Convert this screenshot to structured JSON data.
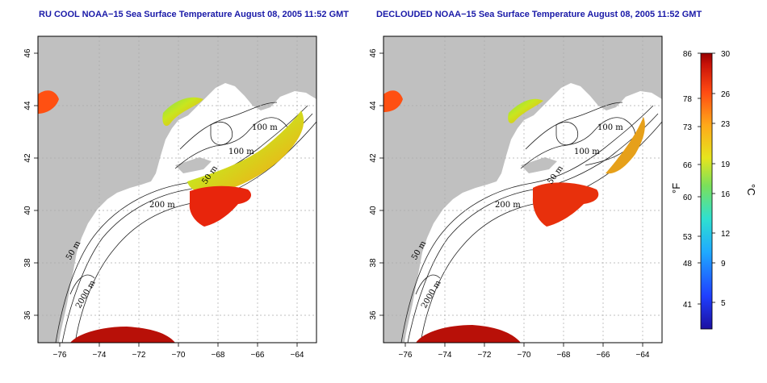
{
  "panels": [
    {
      "title": "RU COOL NOAA−15 Sea Surface Temperature August 08, 2005 11:52 GMT",
      "contour_labels": [
        "100 m",
        "100 m",
        "50 m",
        "200 m",
        "50 m",
        "2000 m"
      ]
    },
    {
      "title": "DECLOUDED NOAA−15 Sea Surface Temperature August 08, 2005 11:52 GMT",
      "contour_labels": [
        "100 m",
        "100 m",
        "50 m",
        "200 m",
        "50 m",
        "2000 m"
      ]
    }
  ],
  "axes": {
    "x_ticks": [
      "−76",
      "−74",
      "−72",
      "−70",
      "−68",
      "−66",
      "−64"
    ],
    "y_ticks": [
      "36",
      "38",
      "40",
      "42",
      "44",
      "46"
    ]
  },
  "colorbar": {
    "fahrenheit_ticks": [
      "86",
      "78",
      "73",
      "66",
      "60",
      "53",
      "48",
      "41"
    ],
    "celsius_ticks": [
      "30",
      "26",
      "23",
      "19",
      "16",
      "12",
      "9",
      "5"
    ],
    "fahrenheit_label": "°F",
    "celsius_label": "°C"
  },
  "colors": {
    "title": "#1a1aa8",
    "land": "#c0c0c0"
  }
}
